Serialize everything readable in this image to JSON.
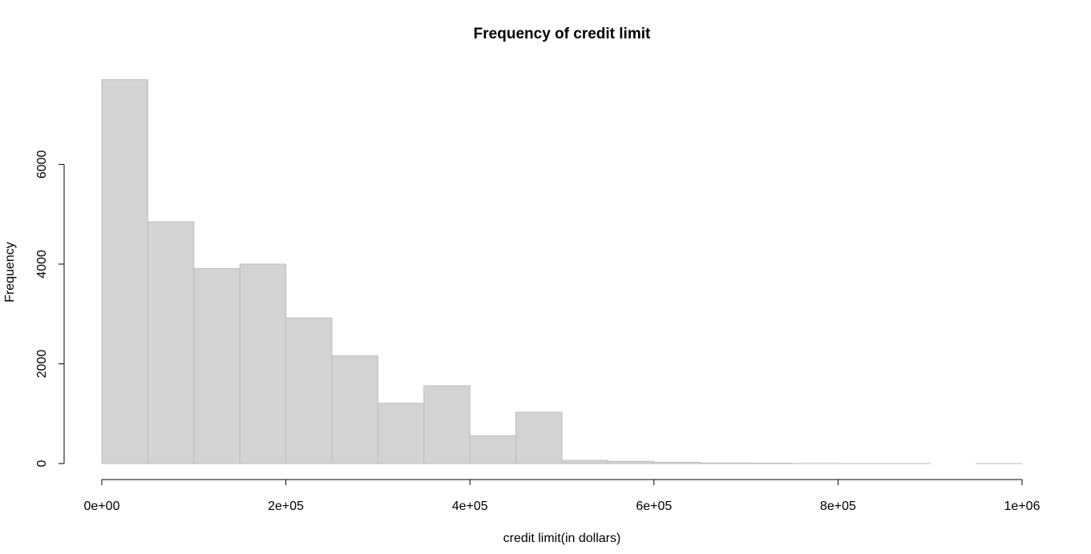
{
  "chart_data": {
    "type": "bar",
    "title": "Frequency of credit limit",
    "xlabel": "credit limit(in dollars)",
    "ylabel": "Frequency",
    "bin_width": 50000,
    "bins": [
      {
        "x0": 0,
        "x1": 50000,
        "count": 7700
      },
      {
        "x0": 50000,
        "x1": 100000,
        "count": 4850
      },
      {
        "x0": 100000,
        "x1": 150000,
        "count": 3910
      },
      {
        "x0": 150000,
        "x1": 200000,
        "count": 4000
      },
      {
        "x0": 200000,
        "x1": 250000,
        "count": 2920
      },
      {
        "x0": 250000,
        "x1": 300000,
        "count": 2160
      },
      {
        "x0": 300000,
        "x1": 350000,
        "count": 1210
      },
      {
        "x0": 350000,
        "x1": 400000,
        "count": 1560
      },
      {
        "x0": 400000,
        "x1": 450000,
        "count": 560
      },
      {
        "x0": 450000,
        "x1": 500000,
        "count": 1030
      },
      {
        "x0": 500000,
        "x1": 550000,
        "count": 65
      },
      {
        "x0": 550000,
        "x1": 600000,
        "count": 45
      },
      {
        "x0": 600000,
        "x1": 650000,
        "count": 25
      },
      {
        "x0": 650000,
        "x1": 700000,
        "count": 12
      },
      {
        "x0": 700000,
        "x1": 750000,
        "count": 10
      },
      {
        "x0": 750000,
        "x1": 800000,
        "count": 2
      },
      {
        "x0": 800000,
        "x1": 850000,
        "count": 1
      },
      {
        "x0": 850000,
        "x1": 900000,
        "count": 1
      },
      {
        "x0": 900000,
        "x1": 950000,
        "count": 0
      },
      {
        "x0": 950000,
        "x1": 1000000,
        "count": 1
      }
    ],
    "xlim": [
      0,
      1000000
    ],
    "ylim": [
      0,
      7700
    ],
    "x_ticks": [
      {
        "value": 0,
        "label": "0e+00"
      },
      {
        "value": 200000,
        "label": "2e+05"
      },
      {
        "value": 400000,
        "label": "4e+05"
      },
      {
        "value": 600000,
        "label": "6e+05"
      },
      {
        "value": 800000,
        "label": "8e+05"
      },
      {
        "value": 1000000,
        "label": "1e+06"
      }
    ],
    "y_ticks": [
      {
        "value": 0,
        "label": "0"
      },
      {
        "value": 2000,
        "label": "2000"
      },
      {
        "value": 4000,
        "label": "4000"
      },
      {
        "value": 6000,
        "label": "6000"
      }
    ],
    "grid": false,
    "colors": {
      "bar_fill": "#d3d3d3",
      "bar_stroke": "#bebebe",
      "axis": "#000000"
    }
  }
}
